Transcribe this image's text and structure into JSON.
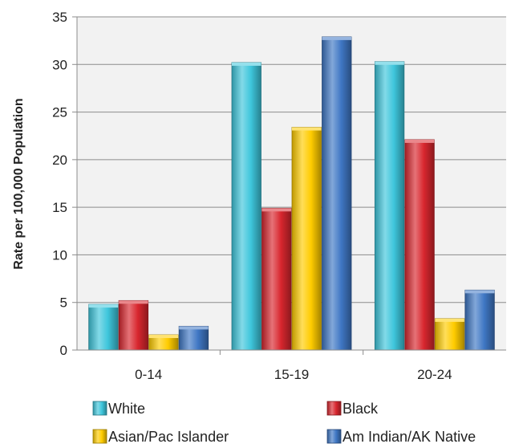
{
  "chart_data": {
    "type": "bar",
    "title": "",
    "xlabel": "",
    "ylabel": "Rate per 100,000 Population",
    "categories": [
      "0-14",
      "15-19",
      "20-24"
    ],
    "ylim": [
      0,
      35
    ],
    "yticks": [
      0,
      5,
      10,
      15,
      20,
      25,
      30,
      35
    ],
    "grid": true,
    "legend_position": "bottom",
    "series": [
      {
        "name": "White",
        "color": "#3ec6dc",
        "values": [
          4.8,
          30.2,
          30.3
        ]
      },
      {
        "name": "Black",
        "color": "#d8262e",
        "values": [
          5.2,
          14.9,
          22.1
        ]
      },
      {
        "name": "Asian/Pac Islander",
        "color": "#ffcc00",
        "values": [
          1.6,
          23.4,
          3.3
        ]
      },
      {
        "name": "Am Indian/AK Native",
        "color": "#3f77c4",
        "values": [
          2.5,
          32.9,
          6.3
        ]
      }
    ]
  }
}
